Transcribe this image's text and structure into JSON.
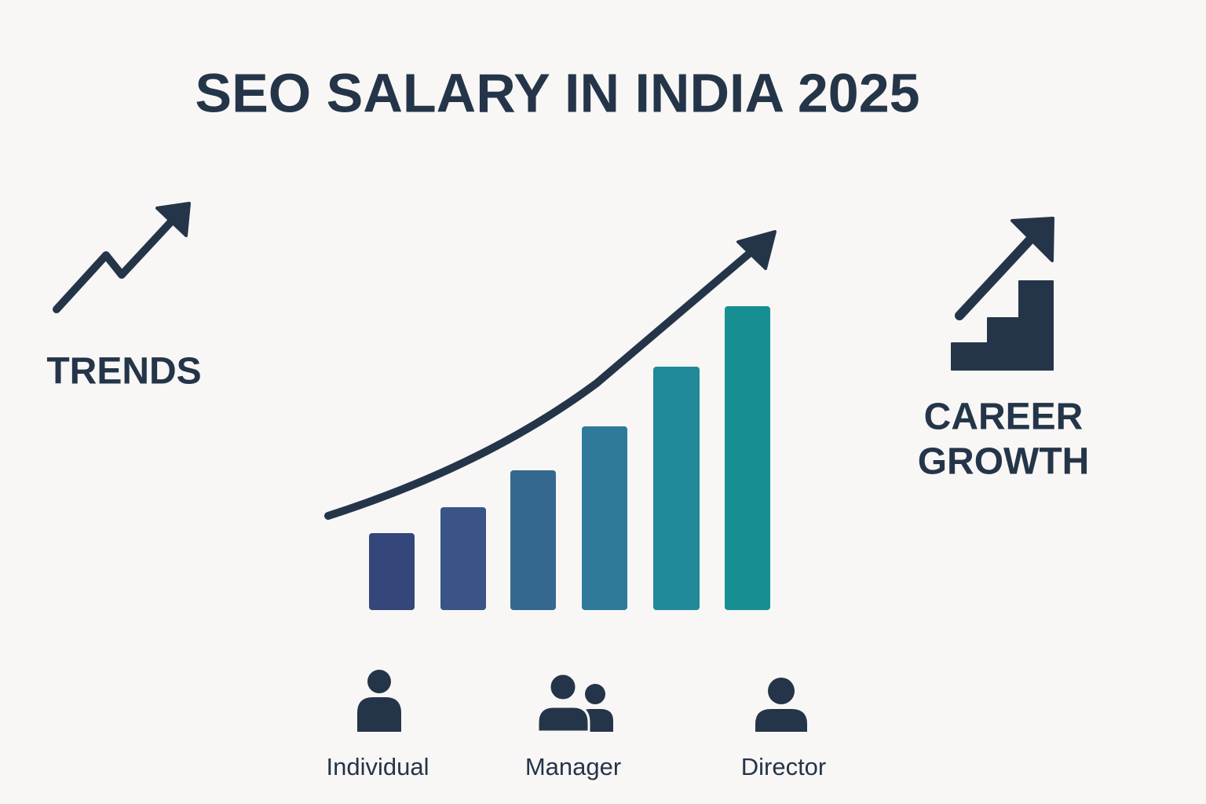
{
  "title": "SEO SALARY IN INDIA 2025",
  "left_panel": {
    "label": "TRENDS"
  },
  "right_panel": {
    "label_lines": [
      "CAREER",
      "GROWTH"
    ]
  },
  "roles": [
    {
      "label": "Individual"
    },
    {
      "label": "Manager"
    },
    {
      "label": "Director"
    }
  ]
}
